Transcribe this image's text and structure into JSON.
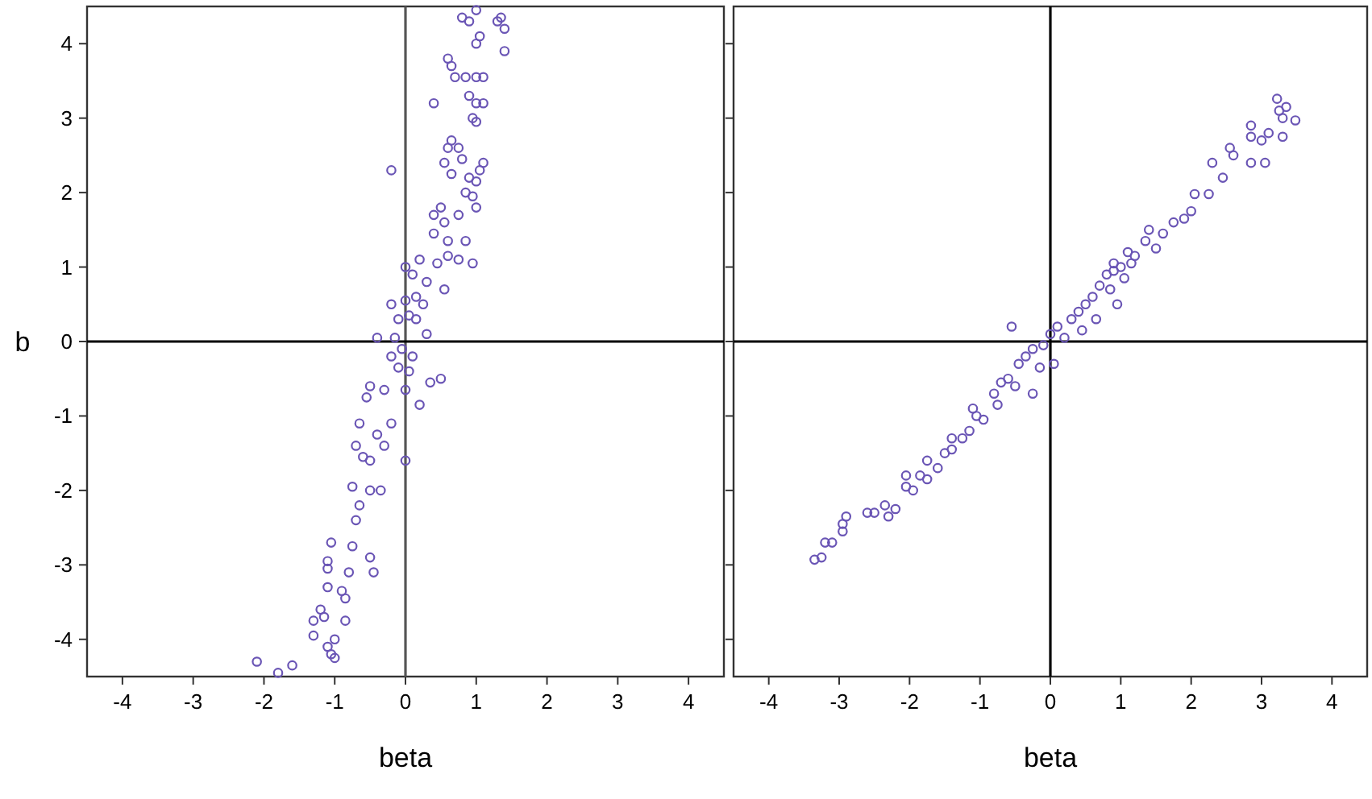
{
  "chart_data": [
    {
      "type": "scatter",
      "xlabel": "beta",
      "ylabel": "b",
      "xlim": [
        -4.5,
        4.5
      ],
      "ylim": [
        -4.5,
        4.5
      ],
      "xticks": [
        -4,
        -3,
        -2,
        -1,
        0,
        1,
        2,
        3,
        4
      ],
      "yticks": [
        -4,
        -3,
        -2,
        -1,
        0,
        1,
        2,
        3,
        4
      ],
      "grid": false,
      "marker": "circle",
      "ref_lines": [
        {
          "axis": "x",
          "value": 0,
          "color": "#555555"
        },
        {
          "axis": "y",
          "value": 0,
          "color": "#000000"
        }
      ],
      "series": [
        {
          "color": "#6a55b5",
          "x": [
            1.0,
            0.8,
            0.9,
            1.35,
            1.4,
            1.3,
            1.05,
            1.0,
            1.4,
            0.6,
            0.65,
            0.7,
            1.0,
            1.1,
            0.85,
            0.4,
            0.9,
            1.0,
            1.1,
            0.95,
            1.0,
            0.65,
            0.6,
            0.75,
            0.55,
            0.8,
            1.1,
            -0.2,
            0.65,
            0.9,
            1.0,
            1.05,
            0.85,
            0.95,
            1.0,
            0.5,
            0.4,
            0.55,
            0.75,
            0.4,
            0.6,
            0.85,
            0.75,
            0.95,
            0.6,
            0.2,
            0.45,
            0.0,
            0.1,
            0.3,
            0.55,
            0.15,
            0.25,
            0.0,
            -0.2,
            0.05,
            -0.1,
            0.15,
            0.3,
            -0.4,
            -0.15,
            -0.05,
            -0.2,
            0.1,
            -0.1,
            0.05,
            -0.5,
            -0.3,
            0.0,
            0.35,
            0.2,
            0.5,
            -0.55,
            -0.65,
            -0.2,
            -0.4,
            -0.7,
            -0.3,
            -0.6,
            -0.5,
            0.0,
            -0.75,
            -0.5,
            -0.35,
            -0.65,
            -0.7,
            -1.05,
            -0.75,
            -1.1,
            -1.1,
            -0.8,
            -0.5,
            -0.45,
            -1.1,
            -0.9,
            -1.2,
            -0.85,
            -1.3,
            -1.15,
            -0.85,
            -1.3,
            -1.0,
            -1.1,
            -1.05,
            -1.0,
            -1.6,
            -2.1,
            -1.8
          ],
          "values": [
            4.45,
            4.35,
            4.3,
            4.35,
            4.2,
            4.3,
            4.1,
            4.0,
            3.9,
            3.8,
            3.7,
            3.55,
            3.55,
            3.55,
            3.55,
            3.2,
            3.3,
            3.2,
            3.2,
            3.0,
            2.95,
            2.7,
            2.6,
            2.6,
            2.4,
            2.45,
            2.4,
            2.3,
            2.25,
            2.2,
            2.15,
            2.3,
            2.0,
            1.95,
            1.8,
            1.8,
            1.7,
            1.6,
            1.7,
            1.45,
            1.35,
            1.35,
            1.1,
            1.05,
            1.15,
            1.1,
            1.05,
            1.0,
            0.9,
            0.8,
            0.7,
            0.6,
            0.5,
            0.55,
            0.5,
            0.35,
            0.3,
            0.3,
            0.1,
            0.05,
            0.05,
            -0.1,
            -0.2,
            -0.2,
            -0.35,
            -0.4,
            -0.6,
            -0.65,
            -0.65,
            -0.55,
            -0.85,
            -0.5,
            -0.75,
            -1.1,
            -1.1,
            -1.25,
            -1.4,
            -1.4,
            -1.55,
            -1.6,
            -1.6,
            -1.95,
            -2.0,
            -2.0,
            -2.2,
            -2.4,
            -2.7,
            -2.75,
            -2.95,
            -3.05,
            -3.1,
            -2.9,
            -3.1,
            -3.3,
            -3.35,
            -3.6,
            -3.45,
            -3.75,
            -3.7,
            -3.75,
            -3.95,
            -4.0,
            -4.1,
            -4.2,
            -4.25,
            -4.35,
            -4.3,
            -4.45
          ]
        }
      ]
    },
    {
      "type": "scatter",
      "xlabel": "beta",
      "xlim": [
        -4.5,
        4.5
      ],
      "ylim": [
        -4.5,
        4.5
      ],
      "xticks": [
        -4,
        -3,
        -2,
        -1,
        0,
        1,
        2,
        3,
        4
      ],
      "yticks": [
        {
          "value": -4,
          "label": null
        },
        {
          "value": -3,
          "label": null
        },
        {
          "value": -2,
          "label": null
        },
        {
          "value": -1,
          "label": null
        },
        {
          "value": 0,
          "label": null
        },
        {
          "value": 1,
          "label": null
        },
        {
          "value": 2,
          "label": null
        },
        {
          "value": 3,
          "label": null
        },
        {
          "value": 4,
          "label": null
        }
      ],
      "tick_labels": "x",
      "grid": false,
      "marker": "circle",
      "ref_lines": [
        {
          "axis": "x",
          "value": 0,
          "color": "#000000"
        },
        {
          "axis": "y",
          "value": 0,
          "color": "#000000"
        }
      ],
      "series": [
        {
          "color": "#6a55b5",
          "x": [
            -3.35,
            -3.25,
            -3.2,
            -3.1,
            -2.95,
            -2.9,
            -2.95,
            -2.6,
            -2.5,
            -2.35,
            -2.2,
            -2.3,
            -2.05,
            -2.05,
            -1.95,
            -1.85,
            -1.75,
            -1.6,
            -1.75,
            -1.5,
            -1.4,
            -1.4,
            -1.25,
            -1.15,
            -1.05,
            -1.1,
            -0.95,
            -0.8,
            -0.75,
            -0.7,
            -0.6,
            -0.5,
            -0.45,
            -0.35,
            -0.25,
            -0.25,
            -0.1,
            -0.15,
            0.0,
            0.1,
            0.05,
            0.2,
            0.3,
            0.4,
            0.5,
            0.45,
            0.6,
            0.7,
            0.65,
            0.8,
            0.9,
            0.85,
            0.9,
            1.0,
            1.05,
            1.1,
            1.2,
            0.95,
            1.15,
            1.35,
            1.5,
            1.4,
            1.6,
            1.75,
            1.9,
            2.0,
            2.05,
            2.25,
            2.45,
            2.3,
            2.6,
            2.55,
            2.85,
            3.05,
            2.85,
            3.0,
            3.1,
            3.3,
            2.85,
            3.22,
            3.25,
            3.35,
            3.48,
            3.3,
            -0.55
          ],
          "values": [
            -2.93,
            -2.9,
            -2.7,
            -2.7,
            -2.45,
            -2.35,
            -2.55,
            -2.3,
            -2.3,
            -2.2,
            -2.25,
            -2.35,
            -1.8,
            -1.95,
            -2.0,
            -1.8,
            -1.85,
            -1.7,
            -1.6,
            -1.5,
            -1.45,
            -1.3,
            -1.3,
            -1.2,
            -1.0,
            -0.9,
            -1.05,
            -0.7,
            -0.85,
            -0.55,
            -0.5,
            -0.6,
            -0.3,
            -0.2,
            -0.1,
            -0.7,
            -0.05,
            -0.35,
            0.1,
            0.2,
            -0.3,
            0.05,
            0.3,
            0.4,
            0.5,
            0.15,
            0.6,
            0.75,
            0.3,
            0.9,
            0.95,
            0.7,
            1.05,
            1.0,
            0.85,
            1.2,
            1.15,
            0.5,
            1.05,
            1.35,
            1.25,
            1.5,
            1.45,
            1.6,
            1.65,
            1.75,
            1.98,
            1.98,
            2.2,
            2.4,
            2.5,
            2.6,
            2.4,
            2.4,
            2.75,
            2.7,
            2.8,
            2.75,
            2.9,
            3.26,
            3.1,
            3.15,
            2.97,
            3.0,
            0.2
          ]
        }
      ]
    }
  ]
}
